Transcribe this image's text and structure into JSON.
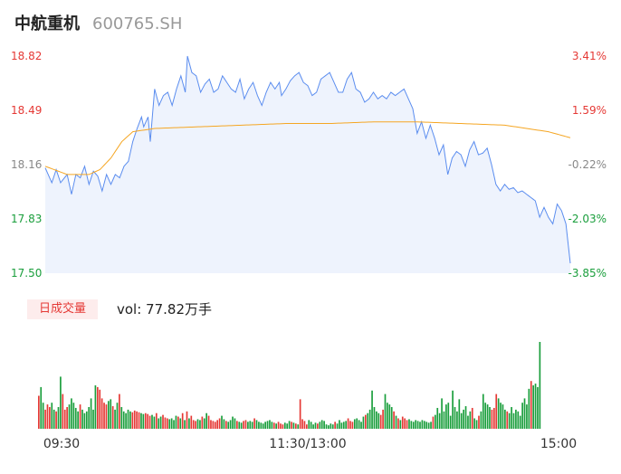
{
  "header": {
    "name": "中航重机",
    "code": "600765.SH"
  },
  "volume_header": {
    "tab_label": "日成交量",
    "vol_label": "vol: 77.82万手"
  },
  "colors": {
    "up": "#e53935",
    "down": "#1a9e3c",
    "neutral": "#888888",
    "price_line": "#5b8def",
    "avg_line": "#f5a623",
    "area_fill": "#eef3fd"
  },
  "chart_data": [
    {
      "type": "line",
      "title": "",
      "y_ticks": [
        "18.82",
        "18.49",
        "18.16",
        "17.83",
        "17.50"
      ],
      "pct_ticks": [
        "3.41%",
        "1.59%",
        "-0.22%",
        "-2.03%",
        "-3.85%"
      ],
      "x_ticks": [
        "09:30",
        "11:30/13:00",
        "15:00"
      ],
      "ylim": [
        17.5,
        18.82
      ],
      "n_points": 241,
      "price_keypoints": [
        [
          0,
          18.14
        ],
        [
          3,
          18.05
        ],
        [
          5,
          18.13
        ],
        [
          7,
          18.05
        ],
        [
          10,
          18.1
        ],
        [
          12,
          17.98
        ],
        [
          14,
          18.1
        ],
        [
          16,
          18.08
        ],
        [
          18,
          18.15
        ],
        [
          20,
          18.04
        ],
        [
          22,
          18.12
        ],
        [
          24,
          18.09
        ],
        [
          26,
          18.0
        ],
        [
          28,
          18.1
        ],
        [
          30,
          18.04
        ],
        [
          32,
          18.1
        ],
        [
          34,
          18.08
        ],
        [
          36,
          18.15
        ],
        [
          38,
          18.18
        ],
        [
          40,
          18.3
        ],
        [
          42,
          18.38
        ],
        [
          44,
          18.45
        ],
        [
          45,
          18.39
        ],
        [
          47,
          18.45
        ],
        [
          48,
          18.3
        ],
        [
          50,
          18.62
        ],
        [
          52,
          18.52
        ],
        [
          54,
          18.58
        ],
        [
          56,
          18.6
        ],
        [
          58,
          18.52
        ],
        [
          60,
          18.62
        ],
        [
          62,
          18.7
        ],
        [
          64,
          18.6
        ],
        [
          65,
          18.82
        ],
        [
          67,
          18.72
        ],
        [
          69,
          18.7
        ],
        [
          71,
          18.6
        ],
        [
          73,
          18.65
        ],
        [
          75,
          18.68
        ],
        [
          77,
          18.6
        ],
        [
          79,
          18.62
        ],
        [
          81,
          18.7
        ],
        [
          83,
          18.66
        ],
        [
          85,
          18.62
        ],
        [
          87,
          18.6
        ],
        [
          89,
          18.68
        ],
        [
          91,
          18.56
        ],
        [
          93,
          18.62
        ],
        [
          95,
          18.66
        ],
        [
          97,
          18.58
        ],
        [
          99,
          18.52
        ],
        [
          101,
          18.6
        ],
        [
          103,
          18.66
        ],
        [
          105,
          18.62
        ],
        [
          107,
          18.66
        ],
        [
          108,
          18.58
        ],
        [
          110,
          18.62
        ],
        [
          112,
          18.67
        ],
        [
          114,
          18.7
        ],
        [
          116,
          18.72
        ],
        [
          118,
          18.66
        ],
        [
          120,
          18.64
        ],
        [
          122,
          18.58
        ],
        [
          124,
          18.6
        ],
        [
          126,
          18.68
        ],
        [
          128,
          18.7
        ],
        [
          130,
          18.72
        ],
        [
          132,
          18.66
        ],
        [
          134,
          18.6
        ],
        [
          136,
          18.6
        ],
        [
          138,
          18.68
        ],
        [
          140,
          18.72
        ],
        [
          142,
          18.62
        ],
        [
          144,
          18.6
        ],
        [
          146,
          18.54
        ],
        [
          148,
          18.56
        ],
        [
          150,
          18.6
        ],
        [
          152,
          18.56
        ],
        [
          154,
          18.58
        ],
        [
          156,
          18.56
        ],
        [
          158,
          18.6
        ],
        [
          160,
          18.58
        ],
        [
          162,
          18.6
        ],
        [
          164,
          18.62
        ],
        [
          166,
          18.56
        ],
        [
          168,
          18.5
        ],
        [
          170,
          18.35
        ],
        [
          172,
          18.42
        ],
        [
          174,
          18.32
        ],
        [
          176,
          18.4
        ],
        [
          178,
          18.32
        ],
        [
          180,
          18.22
        ],
        [
          182,
          18.28
        ],
        [
          184,
          18.1
        ],
        [
          186,
          18.2
        ],
        [
          188,
          18.24
        ],
        [
          190,
          18.22
        ],
        [
          192,
          18.15
        ],
        [
          194,
          18.25
        ],
        [
          196,
          18.3
        ],
        [
          198,
          18.22
        ],
        [
          200,
          18.23
        ],
        [
          202,
          18.26
        ],
        [
          204,
          18.16
        ],
        [
          206,
          18.04
        ],
        [
          208,
          18.0
        ],
        [
          210,
          18.04
        ],
        [
          212,
          18.01
        ],
        [
          214,
          18.02
        ],
        [
          216,
          17.99
        ],
        [
          218,
          18.0
        ],
        [
          220,
          17.98
        ],
        [
          222,
          17.96
        ],
        [
          224,
          17.94
        ],
        [
          226,
          17.84
        ],
        [
          228,
          17.9
        ],
        [
          230,
          17.84
        ],
        [
          232,
          17.8
        ],
        [
          234,
          17.92
        ],
        [
          236,
          17.88
        ],
        [
          238,
          17.8
        ],
        [
          240,
          17.56
        ],
        [
          241,
          17.52
        ]
      ],
      "avg_keypoints": [
        [
          0,
          18.15
        ],
        [
          10,
          18.1
        ],
        [
          20,
          18.1
        ],
        [
          25,
          18.13
        ],
        [
          30,
          18.2
        ],
        [
          35,
          18.3
        ],
        [
          40,
          18.36
        ],
        [
          50,
          18.38
        ],
        [
          70,
          18.39
        ],
        [
          90,
          18.4
        ],
        [
          110,
          18.41
        ],
        [
          130,
          18.41
        ],
        [
          150,
          18.42
        ],
        [
          170,
          18.42
        ],
        [
          190,
          18.41
        ],
        [
          210,
          18.4
        ],
        [
          220,
          18.38
        ],
        [
          230,
          18.36
        ],
        [
          241,
          18.32
        ]
      ],
      "volume": {
        "values": [
          38,
          48,
          30,
          22,
          28,
          25,
          30,
          22,
          20,
          25,
          60,
          40,
          22,
          25,
          28,
          35,
          30,
          24,
          20,
          28,
          22,
          18,
          20,
          25,
          35,
          22,
          50,
          48,
          45,
          35,
          30,
          28,
          32,
          34,
          26,
          22,
          30,
          40,
          25,
          20,
          18,
          22,
          20,
          19,
          21,
          20,
          19,
          18,
          17,
          18,
          17,
          15,
          16,
          14,
          18,
          12,
          14,
          16,
          13,
          12,
          11,
          12,
          10,
          15,
          14,
          12,
          18,
          10,
          20,
          12,
          15,
          10,
          9,
          11,
          10,
          14,
          12,
          18,
          15,
          10,
          9,
          8,
          10,
          12,
          15,
          11,
          9,
          8,
          10,
          14,
          12,
          9,
          8,
          7,
          9,
          10,
          8,
          9,
          8,
          12,
          10,
          8,
          7,
          6,
          8,
          9,
          10,
          8,
          7,
          6,
          8,
          6,
          5,
          7,
          6,
          9,
          8,
          7,
          6,
          5,
          34,
          11,
          9,
          5,
          10,
          8,
          5,
          7,
          6,
          8,
          10,
          9,
          5,
          4,
          6,
          5,
          8,
          6,
          10,
          7,
          8,
          9,
          12,
          9,
          8,
          11,
          12,
          10,
          8,
          14,
          16,
          18,
          22,
          44,
          25,
          20,
          18,
          16,
          22,
          40,
          30,
          28,
          25,
          20,
          15,
          12,
          10,
          14,
          12,
          10,
          11,
          9,
          8,
          10,
          9,
          8,
          10,
          9,
          8,
          7,
          8,
          14,
          16,
          24,
          18,
          35,
          20,
          28,
          30,
          15,
          44,
          25,
          20,
          34,
          18,
          22,
          26,
          15,
          20,
          24,
          12,
          10,
          15,
          20,
          40,
          30,
          28,
          25,
          22,
          24,
          40,
          35,
          30,
          28,
          22,
          20,
          18,
          25,
          18,
          22,
          20,
          15,
          30,
          35,
          28,
          46,
          55,
          50,
          52,
          48,
          100
        ],
        "dirs": "udduuuddudduuuddddduddddddduuuuuddudduddddduuuudduuuddudduuuddddudududuuuddudduuuuuudduddddudduudddudddddddduduuudddududuuuudddduddddddduddddduuudddddudddddduuddddududuuudddddddddddudddddddddddddddddudduddddduuuddddudddddddddduddddduudddddddu"
      }
    }
  ]
}
